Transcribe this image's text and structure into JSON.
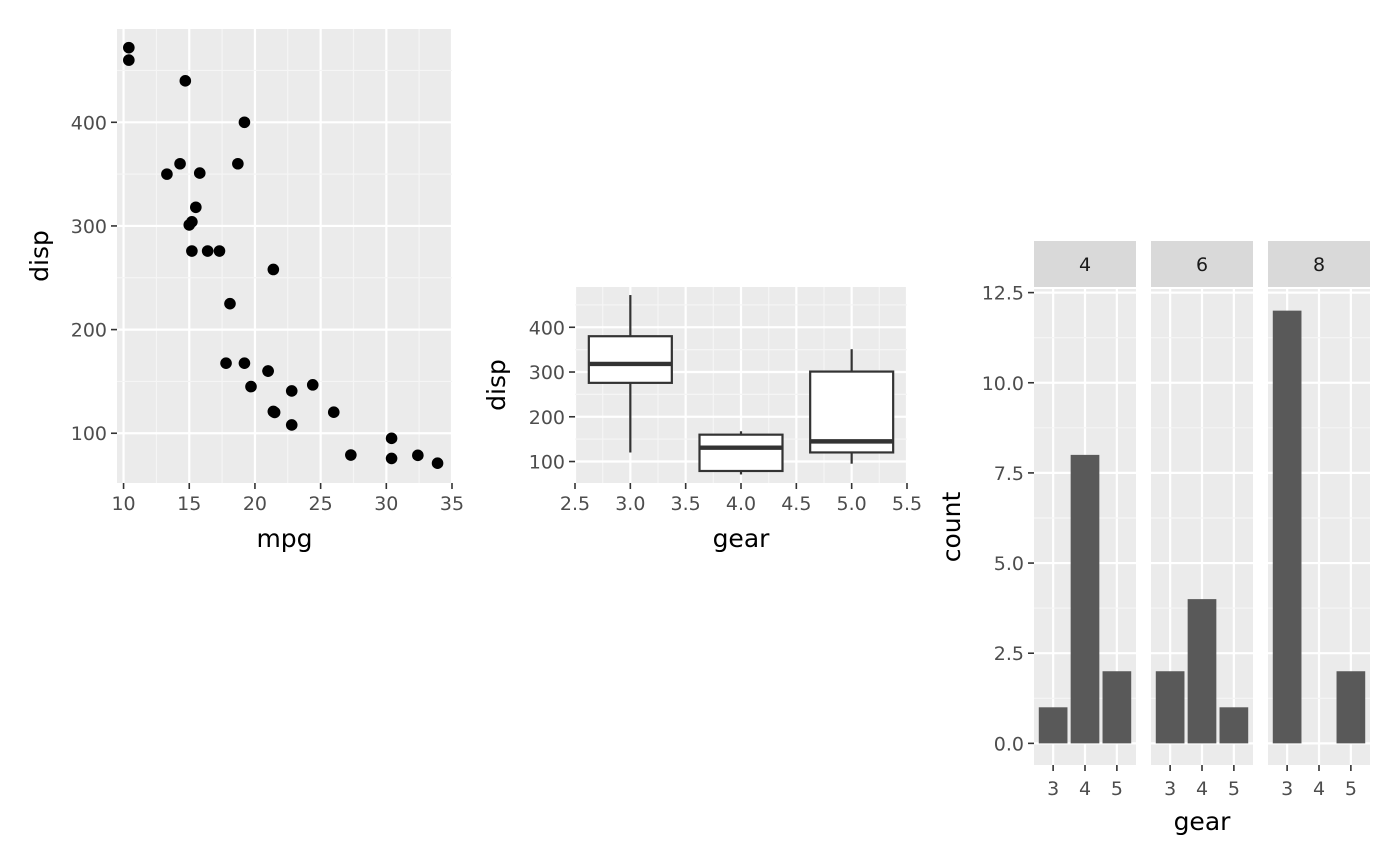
{
  "chart_data": [
    {
      "type": "scatter",
      "xlabel": "mpg",
      "ylabel": "disp",
      "xlim": [
        9.5,
        35
      ],
      "ylim": [
        52,
        490
      ],
      "xticks": [
        10,
        15,
        20,
        25,
        30,
        35
      ],
      "yticks": [
        100,
        200,
        300,
        400
      ],
      "xtick_labels": [
        "10",
        "15",
        "20",
        "25",
        "30",
        "35"
      ],
      "ytick_labels": [
        "100",
        "200",
        "300",
        "400"
      ],
      "grid": true,
      "points": [
        {
          "x": 21.0,
          "y": 160
        },
        {
          "x": 21.0,
          "y": 160
        },
        {
          "x": 22.8,
          "y": 108
        },
        {
          "x": 21.4,
          "y": 258
        },
        {
          "x": 18.7,
          "y": 360
        },
        {
          "x": 18.1,
          "y": 225
        },
        {
          "x": 14.3,
          "y": 360
        },
        {
          "x": 24.4,
          "y": 146.7
        },
        {
          "x": 22.8,
          "y": 140.8
        },
        {
          "x": 19.2,
          "y": 167.6
        },
        {
          "x": 17.8,
          "y": 167.6
        },
        {
          "x": 16.4,
          "y": 275.8
        },
        {
          "x": 17.3,
          "y": 275.8
        },
        {
          "x": 15.2,
          "y": 275.8
        },
        {
          "x": 10.4,
          "y": 472
        },
        {
          "x": 10.4,
          "y": 460
        },
        {
          "x": 14.7,
          "y": 440
        },
        {
          "x": 32.4,
          "y": 78.7
        },
        {
          "x": 30.4,
          "y": 75.7
        },
        {
          "x": 33.9,
          "y": 71.1
        },
        {
          "x": 21.5,
          "y": 120.1
        },
        {
          "x": 15.5,
          "y": 318
        },
        {
          "x": 15.2,
          "y": 304
        },
        {
          "x": 13.3,
          "y": 350
        },
        {
          "x": 19.2,
          "y": 400
        },
        {
          "x": 27.3,
          "y": 79
        },
        {
          "x": 26.0,
          "y": 120.3
        },
        {
          "x": 30.4,
          "y": 95.1
        },
        {
          "x": 15.8,
          "y": 351
        },
        {
          "x": 19.7,
          "y": 145
        },
        {
          "x": 15.0,
          "y": 301
        },
        {
          "x": 21.4,
          "y": 121
        }
      ]
    },
    {
      "type": "box",
      "xlabel": "gear",
      "ylabel": "disp",
      "xlim": [
        2.5,
        5.5
      ],
      "ylim": [
        52,
        490
      ],
      "xticks": [
        2.5,
        3.0,
        3.5,
        4.0,
        4.5,
        5.0,
        5.5
      ],
      "yticks": [
        100,
        200,
        300,
        400
      ],
      "xtick_labels": [
        "2.5",
        "3.0",
        "3.5",
        "4.0",
        "4.5",
        "5.0",
        "5.5"
      ],
      "ytick_labels": [
        "100",
        "200",
        "300",
        "400"
      ],
      "grid": true,
      "boxes": [
        {
          "x": 3.0,
          "whisker_low": 120.1,
          "q1": 275.8,
          "median": 318,
          "q3": 380,
          "whisker_high": 472
        },
        {
          "x": 4.0,
          "whisker_low": 71.1,
          "q1": 78.85,
          "median": 130.9,
          "q3": 160,
          "whisker_high": 167.6
        },
        {
          "x": 5.0,
          "whisker_low": 95.1,
          "q1": 120.3,
          "median": 145,
          "q3": 301,
          "whisker_high": 351
        }
      ]
    },
    {
      "type": "bar",
      "facet_variable": "cyl",
      "xlabel": "gear",
      "ylabel": "count",
      "ylim": [
        -0.6,
        12.6
      ],
      "yticks": [
        0,
        2.5,
        5,
        7.5,
        10,
        12.5
      ],
      "ytick_labels": [
        "0.0",
        "2.5",
        "5.0",
        "7.5",
        "10.0",
        "12.5"
      ],
      "categories": [
        "3",
        "4",
        "5"
      ],
      "grid": true,
      "facets": [
        {
          "label": "4",
          "values": [
            1,
            8,
            2
          ]
        },
        {
          "label": "6",
          "values": [
            2,
            4,
            1
          ]
        },
        {
          "label": "8",
          "values": [
            12,
            0,
            2
          ]
        }
      ]
    }
  ],
  "colors": {
    "panel": "#ebebeb",
    "grid_major": "#ffffff",
    "grid_minor": "#f5f5f5",
    "point": "#000000",
    "bar": "#595959",
    "strip": "#d9d9d9",
    "box_line": "#333333",
    "tick_text": "#4d4d4d",
    "tick_mark": "#333333"
  }
}
